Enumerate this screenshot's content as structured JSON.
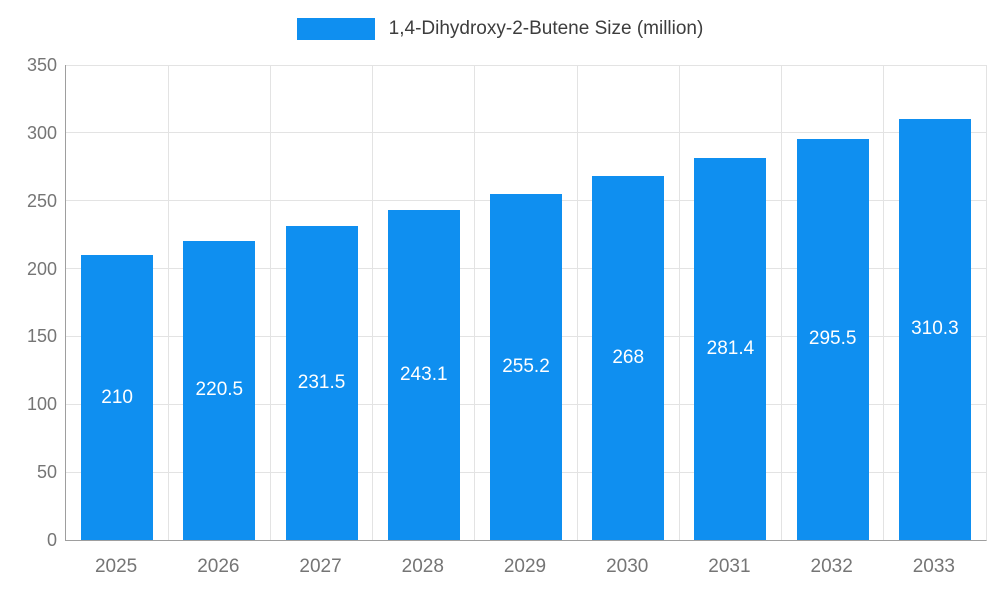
{
  "chart_data": {
    "type": "bar",
    "title": "1,4-Dihydroxy-2-Butene Size (million)",
    "categories": [
      "2025",
      "2026",
      "2027",
      "2028",
      "2029",
      "2030",
      "2031",
      "2032",
      "2033"
    ],
    "values": [
      210,
      220.5,
      231.5,
      243.1,
      255.2,
      268,
      281.4,
      295.5,
      310.3
    ],
    "value_labels": [
      "210",
      "220.5",
      "231.5",
      "243.1",
      "255.2",
      "268",
      "281.4",
      "295.5",
      "310.3"
    ],
    "ylim": [
      0,
      350
    ],
    "yticks": [
      0,
      50,
      100,
      150,
      200,
      250,
      300,
      350
    ],
    "xlabel": "",
    "ylabel": "",
    "grid": true,
    "legend_position": "top",
    "colors": {
      "bar": "#0f8ff0",
      "bar_value_label": "#ffffff",
      "axis_text": "#757575",
      "gridline": "#e3e3e3",
      "axis_line": "#9e9e9e",
      "legend_text": "#3d3d3d"
    }
  }
}
